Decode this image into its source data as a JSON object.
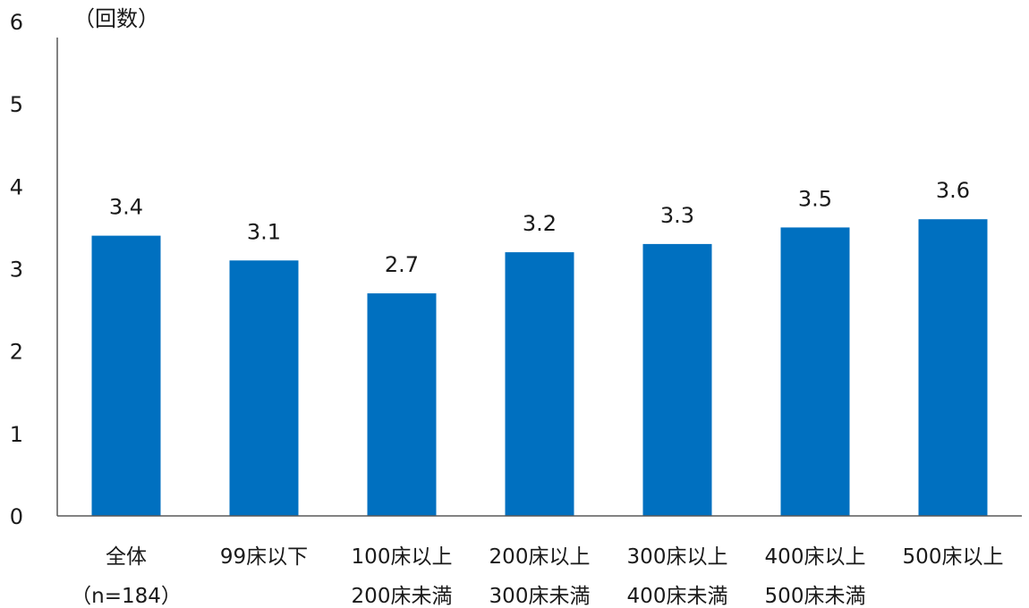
{
  "chart_data": {
    "type": "bar",
    "unit_label": "（回数）",
    "categories": [
      [
        "全体",
        "（n=184）"
      ],
      [
        "99床以下"
      ],
      [
        "100床以上",
        "200床未満"
      ],
      [
        "200床以上",
        "300床未満"
      ],
      [
        "300床以上",
        "400床未満"
      ],
      [
        "400床以上",
        "500床未満"
      ],
      [
        "500床以上"
      ]
    ],
    "values": [
      3.4,
      3.1,
      2.7,
      3.2,
      3.3,
      3.5,
      3.6
    ],
    "data_labels": [
      "3.4",
      "3.1",
      "2.7",
      "3.2",
      "3.3",
      "3.5",
      "3.6"
    ],
    "ylim": [
      0,
      6
    ],
    "yticks": [
      0,
      1,
      2,
      3,
      4,
      5,
      6
    ],
    "grid": false,
    "colors": {
      "bar": "#0070C0",
      "axis": "#595959",
      "text": "#1a1a1a"
    }
  }
}
